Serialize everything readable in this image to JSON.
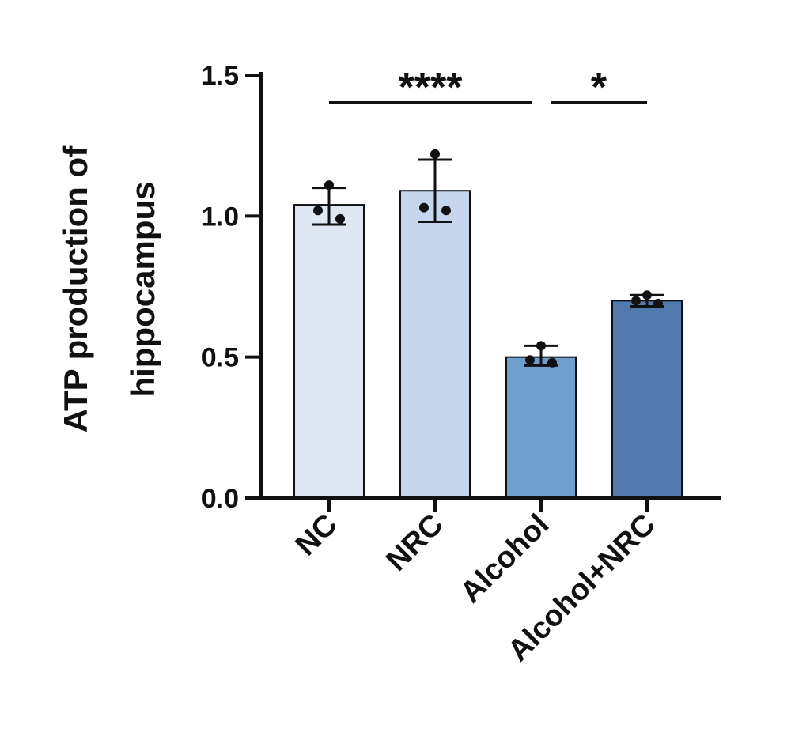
{
  "chart_data": {
    "type": "bar",
    "title": "",
    "ylabel_lines": [
      "ATP production of",
      "hippocampus"
    ],
    "xlabel": "",
    "ylim": [
      0,
      1.5
    ],
    "yticks": [
      "0.0",
      "0.5",
      "1.0",
      "1.5"
    ],
    "ytick_values": [
      0,
      0.5,
      1.0,
      1.5
    ],
    "categories": [
      "NC",
      "NRC",
      "Alcohol",
      "Alcohol+NRC"
    ],
    "values": [
      1.04,
      1.09,
      0.5,
      0.7
    ],
    "error_low": [
      0.97,
      0.98,
      0.47,
      0.68
    ],
    "error_high": [
      1.1,
      1.2,
      0.54,
      0.72
    ],
    "points": [
      [
        1.11,
        1.02,
        0.99
      ],
      [
        1.22,
        1.03,
        1.02
      ],
      [
        0.54,
        0.49,
        0.48
      ],
      [
        0.72,
        0.7,
        0.69
      ]
    ],
    "colors": [
      "#dfe7f2",
      "#c5d6ec",
      "#6f9fcc",
      "#5279ad"
    ],
    "significance": [
      {
        "from": 0,
        "to": 2,
        "label": "****",
        "level": 1.4
      },
      {
        "from": 2,
        "to": 3,
        "label": "*",
        "level": 1.4
      }
    ],
    "grid": false,
    "legend": "none"
  }
}
